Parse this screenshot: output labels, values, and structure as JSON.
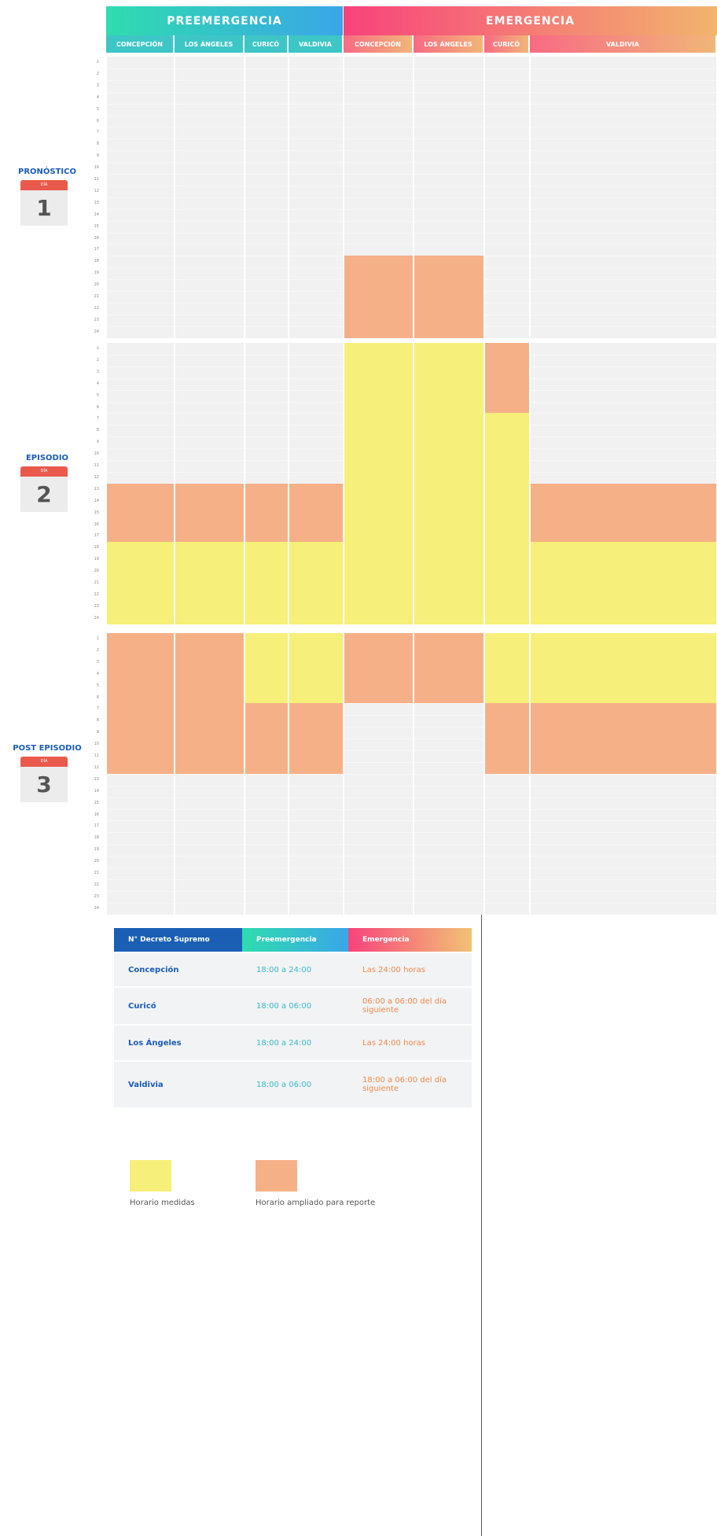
{
  "groups": [
    {
      "name": "PREEMERGENCIA",
      "columns": [
        "CONCEPCIÓN",
        "LOS ÁNGELES",
        "CURICÓ",
        "VALDIVIA"
      ]
    },
    {
      "name": "EMERGENCIA",
      "columns": [
        "CONCEPCIÓN",
        "LOS ÁNGELES",
        "CURICÓ",
        "VALDIVIA"
      ]
    }
  ],
  "hours": [
    1,
    2,
    3,
    4,
    5,
    6,
    7,
    8,
    9,
    10,
    11,
    12,
    13,
    14,
    15,
    16,
    17,
    18,
    19,
    20,
    21,
    22,
    23,
    24
  ],
  "days": [
    {
      "label": "PRONÓSTICO",
      "icon": "DÍA",
      "number": "1",
      "blocks": [
        {
          "group": 1,
          "column": 0,
          "from": 18,
          "to": 24,
          "legend": 1
        },
        {
          "group": 1,
          "column": 1,
          "from": 18,
          "to": 24,
          "legend": 1
        }
      ]
    },
    {
      "label": "EPISODIO",
      "icon": "DÍA",
      "number": "2",
      "blocks": [
        {
          "group": 0,
          "column": 0,
          "from": 13,
          "to": 17,
          "legend": 1
        },
        {
          "group": 0,
          "column": 0,
          "from": 18,
          "to": 24,
          "legend": 0
        },
        {
          "group": 0,
          "column": 1,
          "from": 13,
          "to": 17,
          "legend": 1
        },
        {
          "group": 0,
          "column": 1,
          "from": 18,
          "to": 24,
          "legend": 0
        },
        {
          "group": 0,
          "column": 2,
          "from": 13,
          "to": 17,
          "legend": 1
        },
        {
          "group": 0,
          "column": 2,
          "from": 18,
          "to": 24,
          "legend": 0
        },
        {
          "group": 0,
          "column": 3,
          "from": 13,
          "to": 17,
          "legend": 1
        },
        {
          "group": 0,
          "column": 3,
          "from": 18,
          "to": 24,
          "legend": 0
        },
        {
          "group": 1,
          "column": 0,
          "from": 1,
          "to": 24,
          "legend": 0
        },
        {
          "group": 1,
          "column": 1,
          "from": 1,
          "to": 24,
          "legend": 0
        },
        {
          "group": 1,
          "column": 2,
          "from": 1,
          "to": 6,
          "legend": 1
        },
        {
          "group": 1,
          "column": 2,
          "from": 7,
          "to": 24,
          "legend": 0
        },
        {
          "group": 1,
          "column": 3,
          "from": 13,
          "to": 17,
          "legend": 1
        },
        {
          "group": 1,
          "column": 3,
          "from": 18,
          "to": 24,
          "legend": 0
        }
      ]
    },
    {
      "label": "POST EPISODIO",
      "icon": "DÍA",
      "number": "3",
      "blocks": [
        {
          "group": 0,
          "column": 0,
          "from": 1,
          "to": 12,
          "legend": 1
        },
        {
          "group": 0,
          "column": 1,
          "from": 1,
          "to": 12,
          "legend": 1
        },
        {
          "group": 0,
          "column": 2,
          "from": 1,
          "to": 6,
          "legend": 0
        },
        {
          "group": 0,
          "column": 2,
          "from": 7,
          "to": 12,
          "legend": 1
        },
        {
          "group": 0,
          "column": 3,
          "from": 1,
          "to": 6,
          "legend": 0
        },
        {
          "group": 0,
          "column": 3,
          "from": 7,
          "to": 12,
          "legend": 1
        },
        {
          "group": 1,
          "column": 0,
          "from": 1,
          "to": 6,
          "legend": 1
        },
        {
          "group": 1,
          "column": 1,
          "from": 1,
          "to": 6,
          "legend": 1
        },
        {
          "group": 1,
          "column": 2,
          "from": 1,
          "to": 6,
          "legend": 0
        },
        {
          "group": 1,
          "column": 2,
          "from": 7,
          "to": 12,
          "legend": 1
        },
        {
          "group": 1,
          "column": 3,
          "from": 1,
          "to": 6,
          "legend": 0
        },
        {
          "group": 1,
          "column": 3,
          "from": 7,
          "to": 12,
          "legend": 1
        }
      ]
    }
  ],
  "table": {
    "header": [
      "N° Decreto Supremo",
      "Preemergencia",
      "Emergencia"
    ],
    "rows": [
      [
        "Concepción",
        "18:00 a 24:00",
        "Las 24:00 horas"
      ],
      [
        "Curicó",
        "18:00 a 06:00",
        "06:00 a 06:00 del día siguiente"
      ],
      [
        "Los Ángeles",
        "18:00 a 24:00",
        "Las 24:00 horas"
      ],
      [
        "Valdivia",
        "18:00 a 06:00",
        "18:00 a 06:00 del día siguiente"
      ]
    ]
  },
  "legend": [
    {
      "label": "Horario medidas",
      "color": "#f6ef7a"
    },
    {
      "label": "Horario ampliado para reporte",
      "color": "#f6b088"
    }
  ]
}
